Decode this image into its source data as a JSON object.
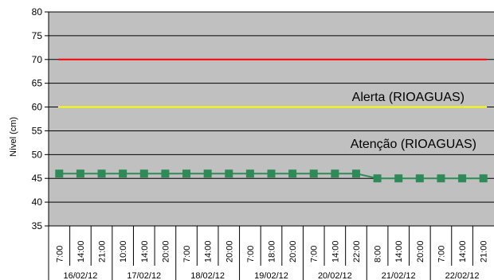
{
  "chart_data": {
    "type": "line",
    "title": "",
    "xlabel": "",
    "ylabel": "Nível (cm)",
    "ylim": [
      35,
      80
    ],
    "yticks": [
      35,
      40,
      45,
      50,
      55,
      60,
      65,
      70,
      75,
      80
    ],
    "grid": true,
    "legend": "none",
    "date_groups": [
      {
        "date": "16/02/12",
        "times": [
          "7:00",
          "14:00",
          "21:00"
        ]
      },
      {
        "date": "17/02/12",
        "times": [
          "10:00",
          "14:00",
          "20:00"
        ]
      },
      {
        "date": "18/02/12",
        "times": [
          "7:00",
          "14:00",
          "20:00"
        ]
      },
      {
        "date": "19/02/12",
        "times": [
          "7:00",
          "18:00",
          "20:00"
        ]
      },
      {
        "date": "20/02/12",
        "times": [
          "7:00",
          "14:00",
          "22:00"
        ]
      },
      {
        "date": "21/02/12",
        "times": [
          "8:00",
          "14:00",
          "20:00"
        ]
      },
      {
        "date": "22/02/12",
        "times": [
          "7:00",
          "14:00",
          "21:00"
        ]
      }
    ],
    "series": [
      {
        "values": [
          46,
          46,
          46,
          46,
          46,
          46,
          46,
          46,
          46,
          46,
          46,
          46,
          46,
          46,
          46,
          45,
          45,
          45,
          45,
          45,
          45
        ],
        "color": "#2e8b57",
        "marker": "square"
      }
    ],
    "reference_lines": [
      {
        "value": 70,
        "color": "#ff0000"
      },
      {
        "value": 60,
        "color": "#ffff00",
        "label": "Alerta (RIOAGUAS)"
      },
      {
        "label": "Atenção (RIOAGUAS)"
      }
    ],
    "colors": {
      "plot_background": "#c0c0c0",
      "gridline": "#000000"
    }
  }
}
